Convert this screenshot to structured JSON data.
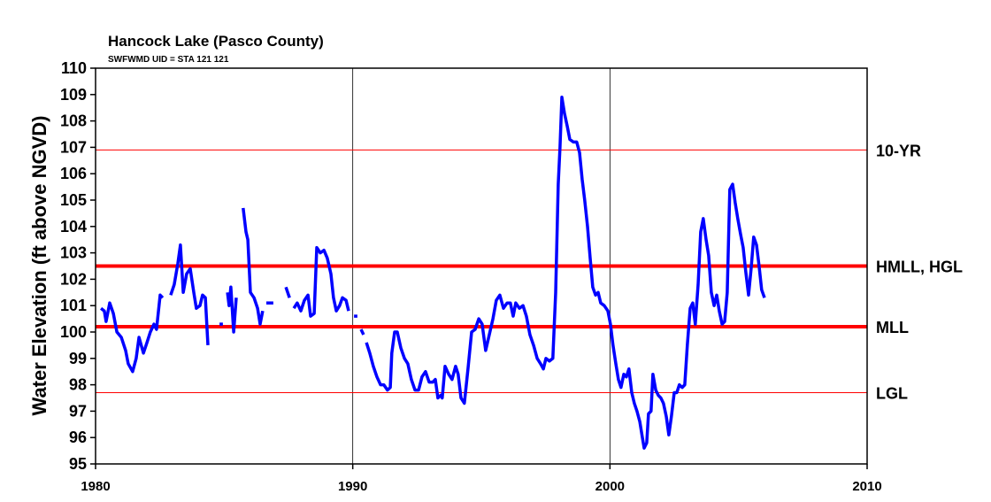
{
  "chart_data": {
    "type": "line",
    "title": "Hancock Lake (Pasco County)",
    "subtitle": "SWFWMD UID = STA 121 121",
    "y_label": "Water Elevation (ft above NGVD)",
    "xlim": [
      1980,
      2010
    ],
    "xticks": [
      1980,
      1990,
      2000,
      2010
    ],
    "ylim": [
      95,
      110
    ],
    "yticks": [
      95,
      96,
      97,
      98,
      99,
      100,
      101,
      102,
      103,
      104,
      105,
      106,
      107,
      108,
      109,
      110
    ],
    "xgrid": true,
    "reference_lines": [
      {
        "label": "10-YR",
        "value": 106.9,
        "color": "#ff0000",
        "line_width": 1
      },
      {
        "label": "HMLL, HGL",
        "value": 102.5,
        "color": "#ff0000",
        "line_width": 4
      },
      {
        "label": "MLL",
        "value": 100.2,
        "color": "#ff0000",
        "line_width": 4
      },
      {
        "label": "LGL",
        "value": 97.7,
        "color": "#ff0000",
        "line_width": 1
      }
    ],
    "x": [
      1980.21,
      1980.34,
      1980.41,
      1980.55,
      1980.69,
      1980.83,
      1981.0,
      1981.17,
      1981.27,
      1981.44,
      1981.58,
      1981.69,
      1981.86,
      1982.0,
      1982.13,
      1982.27,
      1982.37,
      1982.51,
      1982.61,
      1982.76,
      1982.92,
      1983.06,
      1983.2,
      1983.3,
      1983.41,
      1983.54,
      1983.68,
      1983.82,
      1983.92,
      1984.06,
      1984.16,
      1984.27,
      1984.37,
      1984.6,
      1984.82,
      1984.95,
      1985.04,
      1985.13,
      1985.19,
      1985.26,
      1985.37,
      1985.47,
      1985.6,
      1985.74,
      1985.85,
      1985.92,
      1986.02,
      1986.16,
      1986.3,
      1986.4,
      1986.5,
      1986.57,
      1986.64,
      1986.91,
      1987.15,
      1987.4,
      1987.54,
      1987.62,
      1987.71,
      1987.84,
      1987.98,
      1988.12,
      1988.26,
      1988.36,
      1988.5,
      1988.6,
      1988.74,
      1988.88,
      1989.01,
      1989.15,
      1989.25,
      1989.36,
      1989.49,
      1989.6,
      1989.74,
      1989.84,
      1989.95,
      1990.05,
      1990.18,
      1990.25,
      1990.32,
      1990.42,
      1990.47,
      1990.53,
      1990.66,
      1990.8,
      1990.94,
      1991.08,
      1991.21,
      1991.35,
      1991.46,
      1991.52,
      1991.63,
      1991.73,
      1991.87,
      1992.01,
      1992.14,
      1992.28,
      1992.42,
      1992.56,
      1992.69,
      1992.83,
      1992.97,
      1993.11,
      1993.21,
      1993.31,
      1993.42,
      1993.48,
      1993.59,
      1993.73,
      1993.86,
      1994.0,
      1994.1,
      1994.21,
      1994.34,
      1994.48,
      1994.62,
      1994.76,
      1994.9,
      1995.03,
      1995.17,
      1995.31,
      1995.45,
      1995.58,
      1995.72,
      1995.86,
      1996.0,
      1996.13,
      1996.24,
      1996.34,
      1996.48,
      1996.62,
      1996.75,
      1996.89,
      1997.03,
      1997.17,
      1997.3,
      1997.41,
      1997.51,
      1997.65,
      1997.78,
      1997.89,
      1997.99,
      1998.06,
      1998.13,
      1998.23,
      1998.34,
      1998.44,
      1998.58,
      1998.71,
      1998.82,
      1998.92,
      1999.02,
      1999.13,
      1999.23,
      1999.33,
      1999.44,
      1999.54,
      1999.64,
      1999.78,
      1999.92,
      2000.02,
      2000.12,
      2000.23,
      2000.33,
      2000.43,
      2000.54,
      2000.64,
      2000.74,
      2000.85,
      2000.95,
      2001.05,
      2001.16,
      2001.26,
      2001.33,
      2001.43,
      2001.5,
      2001.6,
      2001.67,
      2001.78,
      2001.88,
      2001.98,
      2002.08,
      2002.19,
      2002.29,
      2002.39,
      2002.5,
      2002.6,
      2002.7,
      2002.81,
      2002.91,
      2003.01,
      2003.12,
      2003.22,
      2003.32,
      2003.43,
      2003.53,
      2003.63,
      2003.74,
      2003.84,
      2003.94,
      2004.05,
      2004.15,
      2004.25,
      2004.36,
      2004.46,
      2004.56,
      2004.66,
      2004.77,
      2004.87,
      2004.97,
      2005.08,
      2005.18,
      2005.28,
      2005.39,
      2005.49,
      2005.59,
      2005.7,
      2005.8,
      2005.9,
      2006.01
    ],
    "series": [
      {
        "name": "Water Elevation",
        "color": "#0000ff",
        "values": [
          100.9,
          100.8,
          100.4,
          101.1,
          100.7,
          100.0,
          99.8,
          99.3,
          98.8,
          98.5,
          99.0,
          99.8,
          99.2,
          99.6,
          100.0,
          100.3,
          100.1,
          101.4,
          101.3,
          null,
          101.4,
          101.8,
          102.6,
          103.3,
          101.5,
          102.2,
          102.4,
          101.5,
          100.9,
          101.0,
          101.4,
          101.3,
          99.5,
          null,
          100.3,
          100.3,
          null,
          101.5,
          101.0,
          101.7,
          100.0,
          101.3,
          null,
          104.7,
          103.8,
          103.5,
          101.5,
          101.3,
          100.9,
          100.3,
          100.8,
          null,
          101.1,
          101.1,
          null,
          101.7,
          101.3,
          null,
          100.9,
          101.1,
          100.8,
          101.2,
          101.4,
          100.6,
          100.7,
          103.2,
          103.0,
          103.1,
          102.8,
          102.2,
          101.3,
          100.8,
          101.0,
          101.3,
          101.2,
          100.8,
          null,
          100.6,
          100.6,
          null,
          100.1,
          99.9,
          null,
          99.6,
          99.2,
          98.7,
          98.3,
          98.0,
          98.0,
          97.8,
          97.9,
          99.2,
          100.0,
          100.0,
          99.4,
          99.0,
          98.8,
          98.2,
          97.8,
          97.8,
          98.3,
          98.5,
          98.1,
          98.1,
          98.2,
          97.5,
          97.6,
          97.5,
          98.7,
          98.4,
          98.2,
          98.7,
          98.4,
          97.5,
          97.3,
          98.6,
          100.0,
          100.1,
          100.5,
          100.3,
          99.3,
          99.9,
          100.5,
          101.2,
          101.4,
          100.9,
          101.1,
          101.1,
          100.6,
          101.1,
          100.9,
          101.0,
          100.6,
          99.9,
          99.5,
          99.0,
          98.8,
          98.6,
          99.0,
          98.9,
          99.0,
          101.5,
          105.6,
          107.0,
          108.9,
          108.3,
          107.8,
          107.3,
          107.2,
          107.2,
          106.8,
          105.8,
          105.0,
          104.0,
          102.8,
          101.7,
          101.4,
          101.5,
          101.1,
          101.0,
          100.8,
          100.3,
          99.5,
          98.8,
          98.2,
          97.9,
          98.4,
          98.3,
          98.6,
          97.7,
          97.3,
          97.0,
          96.6,
          96.0,
          95.6,
          95.8,
          96.9,
          97.0,
          98.4,
          97.8,
          97.6,
          97.5,
          97.3,
          96.8,
          96.1,
          96.8,
          97.7,
          97.7,
          98.0,
          97.9,
          98.0,
          99.5,
          100.9,
          101.1,
          100.3,
          101.8,
          103.8,
          104.3,
          103.5,
          102.9,
          101.5,
          101.0,
          101.4,
          100.8,
          100.3,
          100.4,
          101.5,
          105.4,
          105.6,
          104.9,
          104.3,
          103.7,
          103.2,
          102.3,
          101.4,
          102.4,
          103.6,
          103.3,
          102.5,
          101.6,
          101.3
        ]
      }
    ]
  }
}
